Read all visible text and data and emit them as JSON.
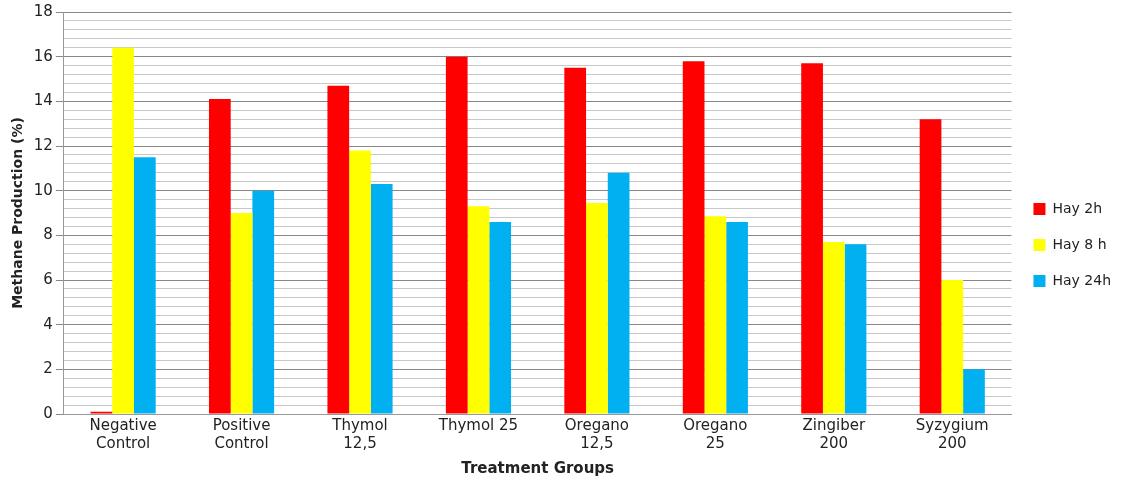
{
  "chart_data": {
    "type": "bar",
    "xlabel": "Treatment Groups",
    "ylabel": "Methane Production (%)",
    "categories": [
      "Negative\nControl",
      "Positive\nControl",
      "Thymol\n12,5",
      "Thymol 25",
      "Oregano\n12,5",
      "Oregano\n25",
      "Zingiber\n200",
      "Syzygium\n200"
    ],
    "series": [
      {
        "name": "Hay 2h",
        "color": "#ff0000",
        "values": [
          0.1,
          14.1,
          14.7,
          16.0,
          15.5,
          15.8,
          15.7,
          13.2
        ]
      },
      {
        "name": "Hay 8 h",
        "color": "#ffff00",
        "values": [
          16.4,
          9.0,
          11.8,
          9.3,
          9.45,
          8.85,
          7.7,
          6.0
        ]
      },
      {
        "name": "Hay 24h",
        "color": "#00b0f0",
        "values": [
          11.5,
          10.0,
          10.3,
          8.6,
          10.8,
          8.6,
          7.6,
          2.0
        ]
      }
    ],
    "ylim": [
      0,
      18
    ],
    "yticks": [
      0,
      {
        "value": 0.4,
        "label": null
      },
      {
        "value": 0.8,
        "label": null
      },
      {
        "value": 1.2,
        "label": null
      },
      {
        "value": 1.6,
        "label": null
      },
      2,
      {
        "value": 2.4,
        "label": null
      },
      {
        "value": 2.8,
        "label": null
      },
      {
        "value": 3.2,
        "label": null
      },
      {
        "value": 3.6,
        "label": null
      },
      4,
      {
        "value": 4.4,
        "label": null
      },
      {
        "value": 4.8,
        "label": null
      },
      {
        "value": 5.2,
        "label": null
      },
      {
        "value": 5.6,
        "label": null
      },
      6,
      {
        "value": 6.4,
        "label": null
      },
      {
        "value": 6.8,
        "label": null
      },
      {
        "value": 7.2,
        "label": null
      },
      {
        "value": 7.6,
        "label": null
      },
      8,
      {
        "value": 8.4,
        "label": null
      },
      {
        "value": 8.8,
        "label": null
      },
      {
        "value": 9.2,
        "label": null
      },
      {
        "value": 9.6,
        "label": null
      },
      10,
      {
        "value": 10.4,
        "label": null
      },
      {
        "value": 10.8,
        "label": null
      },
      {
        "value": 11.2,
        "label": null
      },
      {
        "value": 11.6,
        "label": null
      },
      12,
      {
        "value": 12.4,
        "label": null
      },
      {
        "value": 12.8,
        "label": null
      },
      {
        "value": 13.2,
        "label": null
      },
      {
        "value": 13.6,
        "label": null
      },
      14,
      {
        "value": 14.4,
        "label": null
      },
      {
        "value": 14.8,
        "label": null
      },
      {
        "value": 15.2,
        "label": null
      },
      {
        "value": 15.6,
        "label": null
      },
      16,
      {
        "value": 16.4,
        "label": null
      },
      {
        "value": 16.8,
        "label": null
      },
      {
        "value": 17.2,
        "label": null
      },
      {
        "value": 17.6,
        "label": null
      },
      18
    ],
    "grid": "y",
    "legend": "right"
  }
}
